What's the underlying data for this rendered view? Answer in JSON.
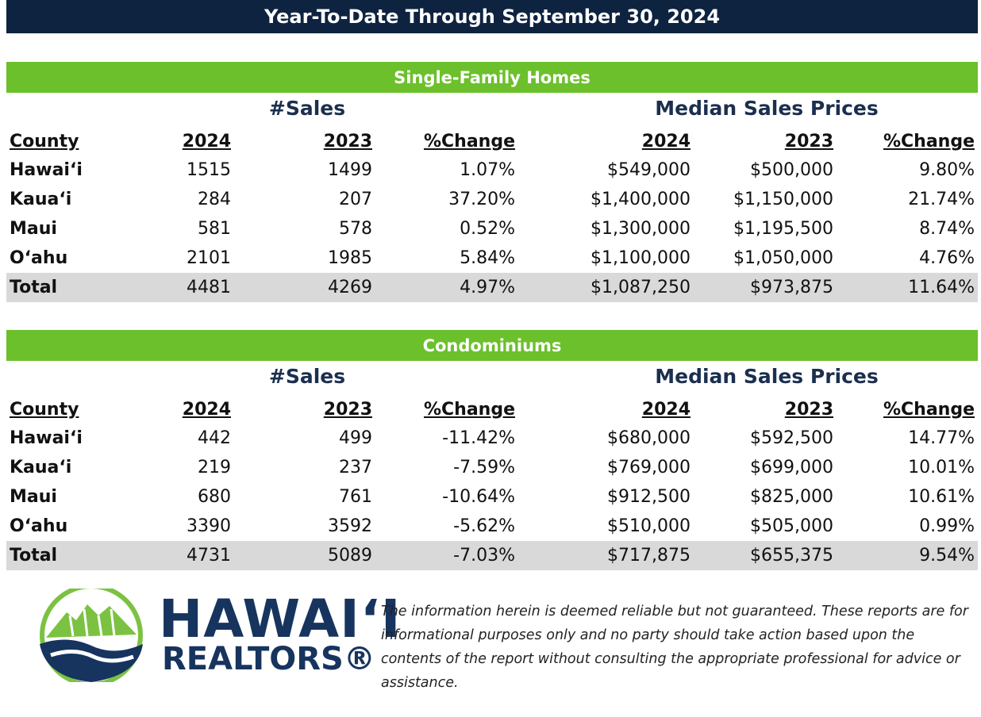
{
  "header": {
    "title": "Year-To-Date Through September 30, 2024"
  },
  "sections": [
    {
      "title": "Single-Family Homes",
      "group_headers": [
        "#Sales",
        "Median Sales Prices"
      ],
      "columns": [
        "County",
        "2024",
        "2023",
        "%Change",
        "2024",
        "2023",
        "%Change"
      ],
      "rows": [
        [
          "Hawai‘i",
          "1515",
          "1499",
          "1.07%",
          "$549,000",
          "$500,000",
          "9.80%"
        ],
        [
          "Kaua‘i",
          "284",
          "207",
          "37.20%",
          "$1,400,000",
          "$1,150,000",
          "21.74%"
        ],
        [
          "Maui",
          "581",
          "578",
          "0.52%",
          "$1,300,000",
          "$1,195,500",
          "8.74%"
        ],
        [
          "O‘ahu",
          "2101",
          "1985",
          "5.84%",
          "$1,100,000",
          "$1,050,000",
          "4.76%"
        ],
        [
          "Total",
          "4481",
          "4269",
          "4.97%",
          "$1,087,250",
          "$973,875",
          "11.64%"
        ]
      ]
    },
    {
      "title": "Condominiums",
      "group_headers": [
        "#Sales",
        "Median Sales Prices"
      ],
      "columns": [
        "County",
        "2024",
        "2023",
        "%Change",
        "2024",
        "2023",
        "%Change"
      ],
      "rows": [
        [
          "Hawai‘i",
          "442",
          "499",
          "-11.42%",
          "$680,000",
          "$592,500",
          "14.77%"
        ],
        [
          "Kaua‘i",
          "219",
          "237",
          "-7.59%",
          "$769,000",
          "$699,000",
          "10.01%"
        ],
        [
          "Maui",
          "680",
          "761",
          "-10.64%",
          "$912,500",
          "$825,000",
          "10.61%"
        ],
        [
          "O‘ahu",
          "3390",
          "3592",
          "-5.62%",
          "$510,000",
          "$505,000",
          "0.99%"
        ],
        [
          "Total",
          "4731",
          "5089",
          "-7.03%",
          "$717,875",
          "$655,375",
          "9.54%"
        ]
      ]
    }
  ],
  "logo": {
    "line1": "HAWAI‘I",
    "line2": "REALTORS®"
  },
  "disclaimer": "The information herein is deemed reliable but not guaranteed. These reports are for informational purposes only and no party should take action based upon the contents of the report without consulting the appropriate professional for advice or assistance."
}
